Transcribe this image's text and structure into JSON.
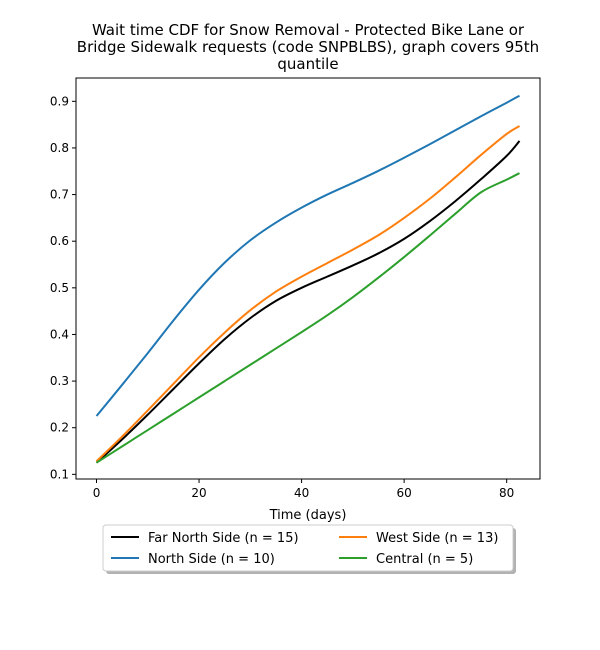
{
  "chart_data": {
    "type": "line",
    "title_lines": [
      "Wait time CDF for Snow Removal - Protected Bike Lane or",
      "Bridge Sidewalk  requests (code SNPBLBS), graph covers 95th",
      "quantile"
    ],
    "xlabel": "Time (days)",
    "ylabel": "",
    "xlim": [
      -4,
      86.5
    ],
    "ylim": [
      0.09,
      0.95
    ],
    "xticks": [
      0,
      20,
      40,
      60,
      80
    ],
    "yticks": [
      0.1,
      0.2,
      0.3,
      0.4,
      0.5,
      0.6,
      0.7,
      0.8,
      0.9
    ],
    "legend_placement": "below",
    "series": [
      {
        "name": "Far North Side (n = 15)",
        "color": "#000000",
        "x": [
          0,
          5,
          10,
          15,
          20,
          25,
          30,
          35,
          40,
          45,
          50,
          55,
          60,
          65,
          70,
          75,
          80,
          82.5
        ],
        "y": [
          0.125,
          0.175,
          0.228,
          0.283,
          0.338,
          0.39,
          0.435,
          0.472,
          0.5,
          0.524,
          0.548,
          0.574,
          0.605,
          0.643,
          0.686,
          0.733,
          0.783,
          0.815
        ]
      },
      {
        "name": "North Side (n = 10)",
        "color": "#1f77b4",
        "x": [
          0,
          5,
          10,
          15,
          20,
          25,
          30,
          35,
          40,
          45,
          50,
          55,
          60,
          65,
          70,
          75,
          80,
          82.5
        ],
        "y": [
          0.225,
          0.292,
          0.36,
          0.43,
          0.496,
          0.554,
          0.602,
          0.64,
          0.672,
          0.7,
          0.725,
          0.751,
          0.779,
          0.808,
          0.838,
          0.868,
          0.897,
          0.912
        ]
      },
      {
        "name": "West Side (n = 13)",
        "color": "#ff7f0e",
        "x": [
          0,
          5,
          10,
          15,
          20,
          25,
          30,
          35,
          40,
          45,
          50,
          55,
          60,
          65,
          70,
          75,
          80,
          82.5
        ],
        "y": [
          0.128,
          0.181,
          0.237,
          0.294,
          0.351,
          0.404,
          0.452,
          0.492,
          0.524,
          0.553,
          0.582,
          0.613,
          0.65,
          0.691,
          0.737,
          0.785,
          0.83,
          0.847
        ]
      },
      {
        "name": "Central (n = 5)",
        "color": "#2ca02c",
        "x": [
          0,
          5,
          10,
          15,
          20,
          25,
          30,
          35,
          40,
          45,
          50,
          55,
          60,
          65,
          70,
          75,
          80,
          82.5
        ],
        "y": [
          0.125,
          0.16,
          0.195,
          0.23,
          0.265,
          0.3,
          0.335,
          0.37,
          0.405,
          0.441,
          0.48,
          0.522,
          0.566,
          0.612,
          0.659,
          0.705,
          0.732,
          0.746
        ]
      }
    ]
  }
}
